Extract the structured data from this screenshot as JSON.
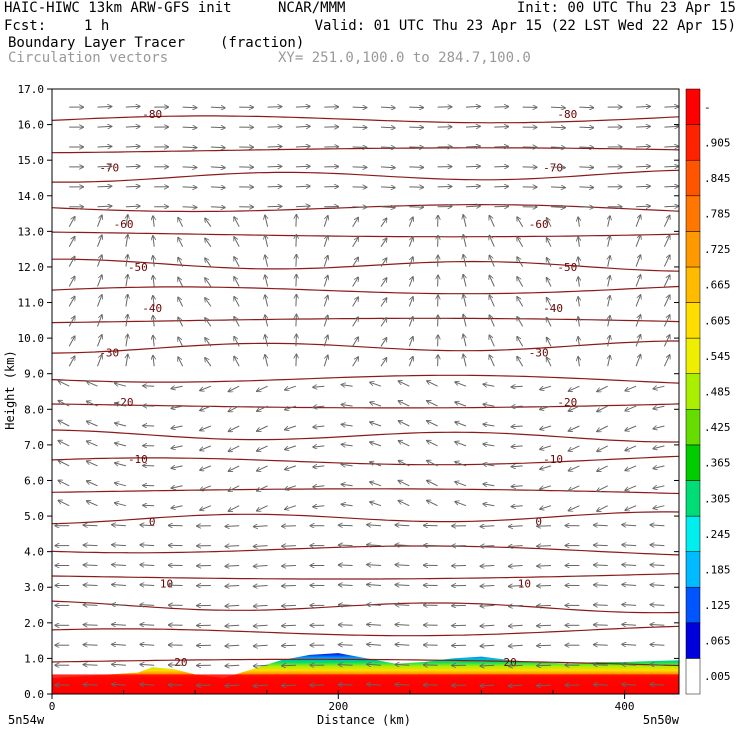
{
  "header": {
    "title_left": "HAIC-HIWC 13km ARW-GFS init",
    "org": "NCAR/MMM",
    "init": "Init: 00 UTC Thu 23 Apr 15",
    "fcst_label": "Fcst:",
    "fcst_value": "1 h",
    "valid": "Valid: 01 UTC Thu 23 Apr 15 (22 LST Wed 22 Apr 15)",
    "field_name": "Boundary Layer Tracer",
    "field_units": "(fraction)",
    "vector_label": "Circulation vectors",
    "xy_label": "XY= 251.0,100.0 to 284.7,100.0"
  },
  "chart_data": {
    "type": "contour_cross_section",
    "ylabel": "Height (km)",
    "xlabel": "Distance (km)",
    "ylim": [
      0,
      17
    ],
    "xlim": [
      0,
      438
    ],
    "yticks": [
      "0.0",
      "1.0",
      "2.0",
      "3.0",
      "4.0",
      "5.0",
      "6.0",
      "7.0",
      "8.0",
      "9.0",
      "10.0",
      "11.0",
      "12.0",
      "13.0",
      "14.0",
      "15.0",
      "16.0",
      "17.0"
    ],
    "xticks": [
      {
        "value": 0,
        "label": "0"
      },
      {
        "value": 200,
        "label": "200"
      },
      {
        "value": 400,
        "label": "400"
      }
    ],
    "x_endpoints": {
      "left": "5n54w",
      "right": "5n50w"
    },
    "colorbar_labels": [
      ".005",
      ".065",
      ".125",
      ".185",
      ".245",
      ".305",
      ".365",
      ".425",
      ".485",
      ".545",
      ".605",
      ".665",
      ".725",
      ".785",
      ".845",
      ".905",
      "-"
    ],
    "colorbar_colors": [
      "#ffffff",
      "#0000dd",
      "#0055ff",
      "#00bbff",
      "#00eeee",
      "#00dd77",
      "#00cc00",
      "#66dd00",
      "#aaee00",
      "#eeee00",
      "#ffdd00",
      "#ffbb00",
      "#ff9900",
      "#ff7700",
      "#ff5500",
      "#ff2200",
      "#ff0000"
    ],
    "temperature_contours": [
      {
        "value": 20,
        "height_km": 0.9,
        "label": "20"
      },
      {
        "value": 10,
        "height_km": 3.1,
        "label": "10"
      },
      {
        "value": 0,
        "height_km": 4.85,
        "label": "0"
      },
      {
        "value": -10,
        "height_km": 6.6,
        "label": "-10"
      },
      {
        "value": -20,
        "height_km": 8.2,
        "label": "-20"
      },
      {
        "value": -30,
        "height_km": 9.6,
        "label": "-30"
      },
      {
        "value": -40,
        "height_km": 10.85,
        "label": "-40"
      },
      {
        "value": -50,
        "height_km": 12.0,
        "label": "-50"
      },
      {
        "value": -60,
        "height_km": 13.2,
        "label": "-60"
      },
      {
        "value": -70,
        "height_km": 14.8,
        "label": "-70"
      },
      {
        "value": -80,
        "height_km": 16.3,
        "label": "-80"
      }
    ],
    "boundary_layer_top_km": [
      {
        "x": 0,
        "y": 0.45
      },
      {
        "x": 20,
        "y": 0.5
      },
      {
        "x": 40,
        "y": 0.55
      },
      {
        "x": 60,
        "y": 0.6
      },
      {
        "x": 70,
        "y": 0.75
      },
      {
        "x": 85,
        "y": 0.7
      },
      {
        "x": 100,
        "y": 0.55
      },
      {
        "x": 120,
        "y": 0.45
      },
      {
        "x": 140,
        "y": 0.7
      },
      {
        "x": 160,
        "y": 0.95
      },
      {
        "x": 180,
        "y": 1.1
      },
      {
        "x": 200,
        "y": 1.15
      },
      {
        "x": 220,
        "y": 1.0
      },
      {
        "x": 240,
        "y": 0.85
      },
      {
        "x": 260,
        "y": 0.9
      },
      {
        "x": 280,
        "y": 1.0
      },
      {
        "x": 300,
        "y": 1.05
      },
      {
        "x": 320,
        "y": 0.95
      },
      {
        "x": 340,
        "y": 0.9
      },
      {
        "x": 360,
        "y": 0.85
      },
      {
        "x": 380,
        "y": 0.9
      },
      {
        "x": 400,
        "y": 0.9
      },
      {
        "x": 438,
        "y": 0.95
      }
    ],
    "grid": false,
    "legend": "right colorbar"
  }
}
